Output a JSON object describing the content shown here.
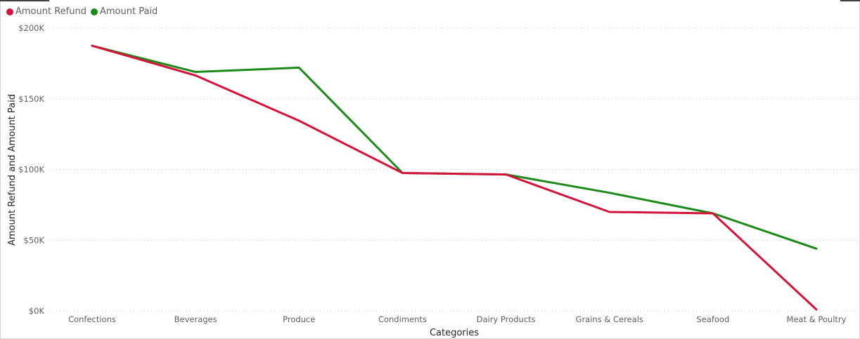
{
  "chart_data": {
    "type": "line",
    "title": "",
    "xlabel": "Categories",
    "ylabel": "Amount Refund and Amount Paid",
    "categories": [
      "Confections",
      "Beverages",
      "Produce",
      "Condiments",
      "Dairy Products",
      "Grains & Cereals",
      "Seafood",
      "Meat & Poultry"
    ],
    "ylim": [
      0,
      200000
    ],
    "yticks": [
      {
        "value": 0,
        "label": "$0K"
      },
      {
        "value": 50000,
        "label": "$50K"
      },
      {
        "value": 100000,
        "label": "$100K"
      },
      {
        "value": 150000,
        "label": "$150K"
      },
      {
        "value": 200000,
        "label": "$200K"
      }
    ],
    "grid": true,
    "legend_position": "top-left",
    "series": [
      {
        "name": "Amount Refund",
        "color": "#D5133A",
        "values": [
          187500,
          166500,
          134500,
          97500,
          96500,
          70000,
          69000,
          1000
        ]
      },
      {
        "name": "Amount Paid",
        "color": "#1B8A19",
        "values": [
          187500,
          169000,
          172000,
          97500,
          96500,
          83500,
          69000,
          44000
        ]
      }
    ]
  }
}
